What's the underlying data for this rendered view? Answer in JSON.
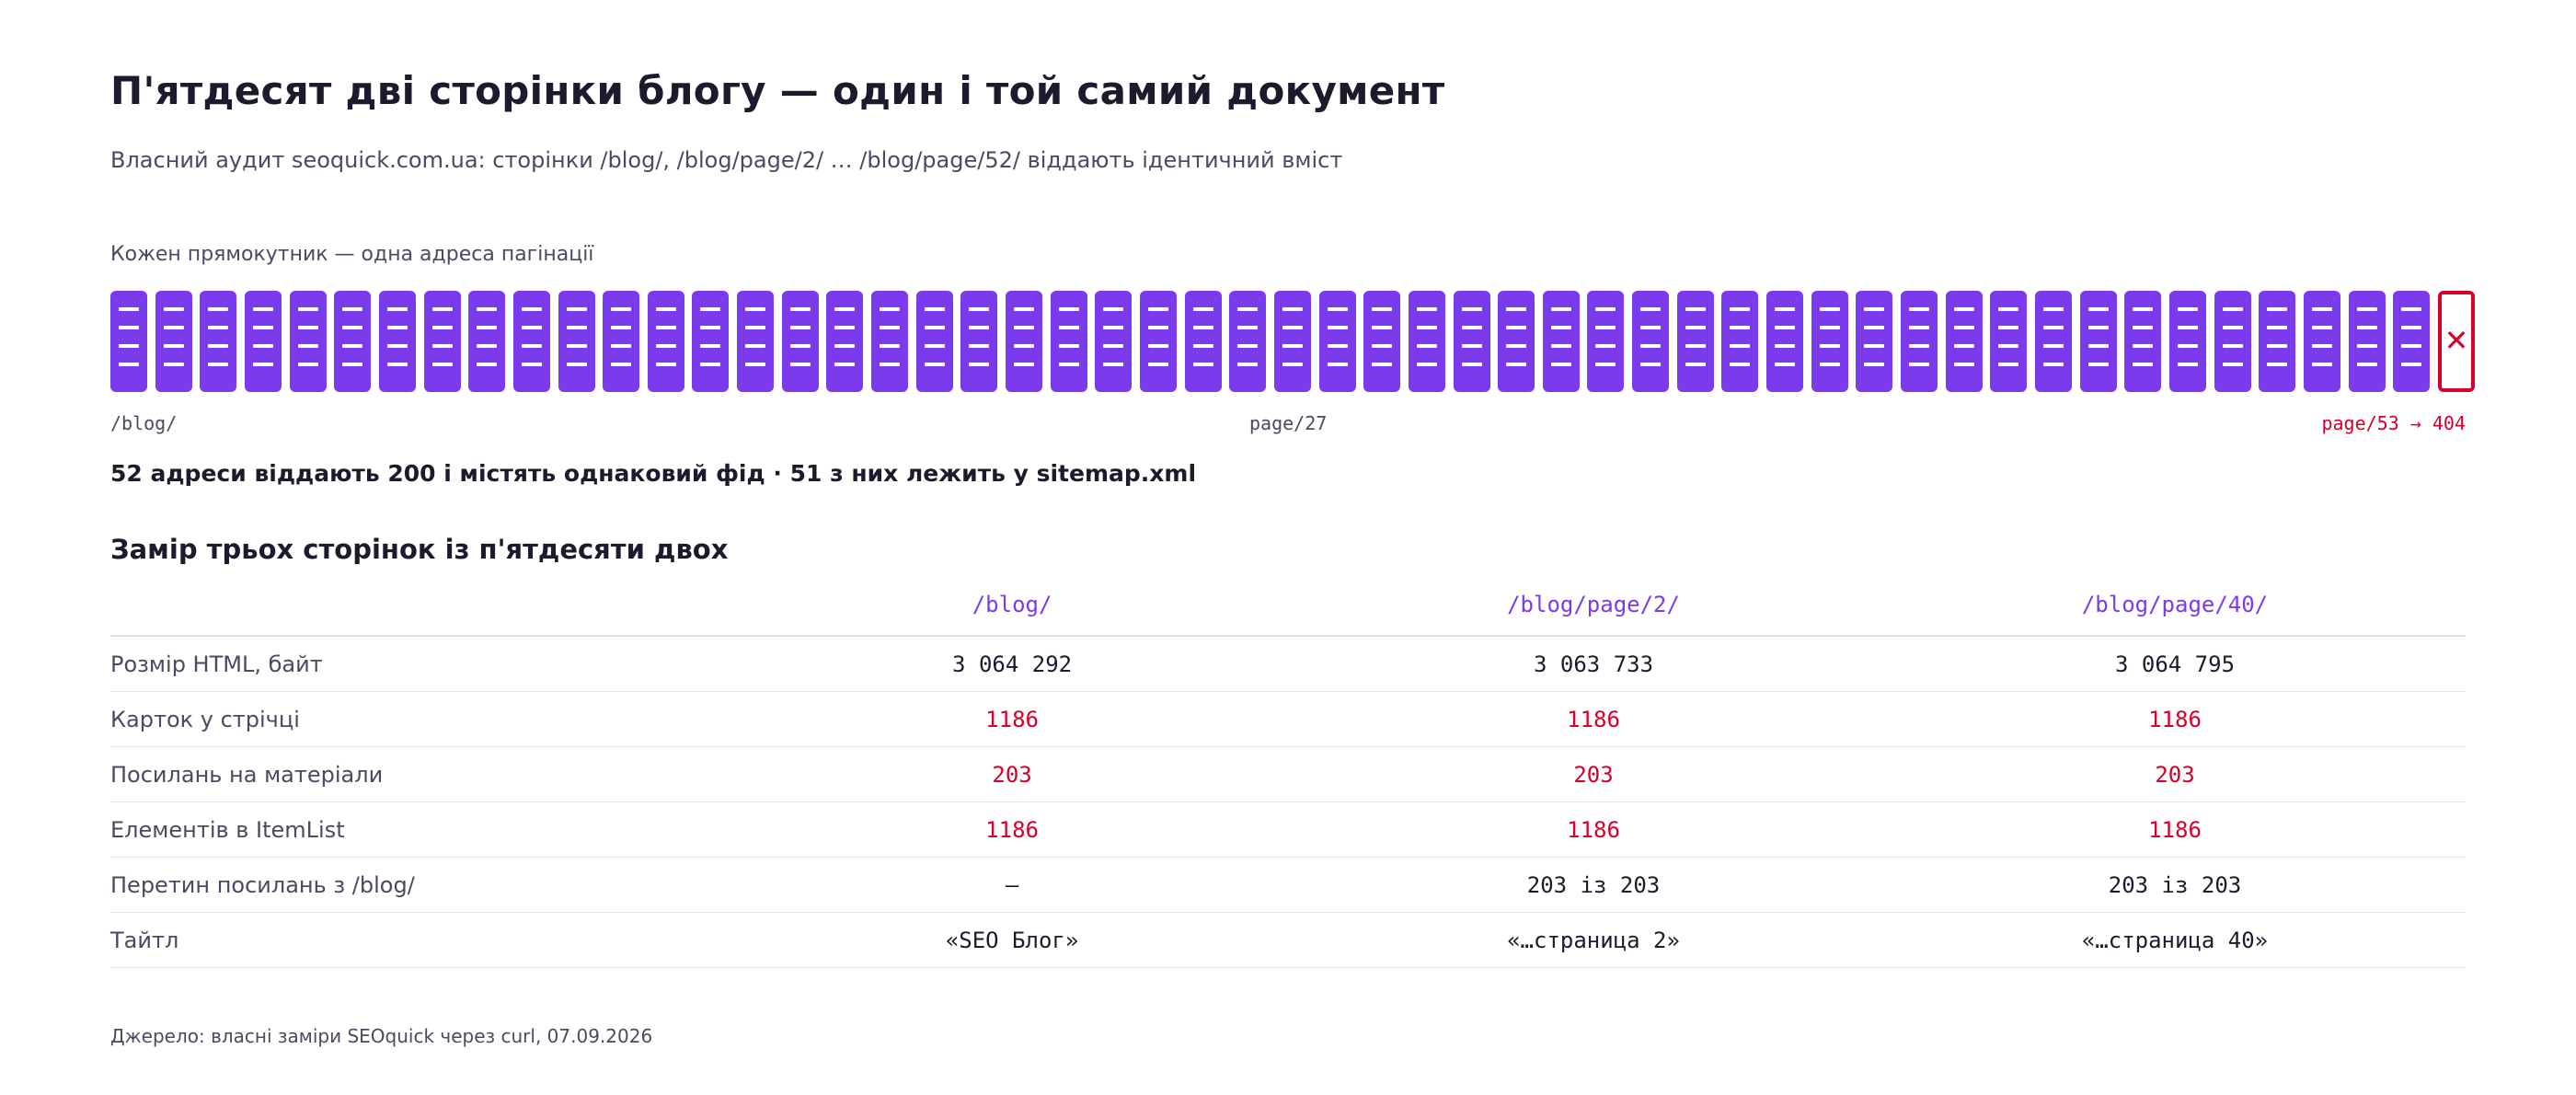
{
  "title": "П'ятдесят дві сторінки блогу — один і той самий документ",
  "subtitle": "Власний аудит seoquick.com.ua: сторінки /blog/, /blog/page/2/ … /blog/page/52/ віддають ідентичний вміст",
  "strip": {
    "caption": "Кожен прямокутник — одна адреса пагінації",
    "total_pages": 52,
    "missing_page_icon": "x-icon",
    "label_start": "/blog/",
    "label_middle": "page/27",
    "label_end": "page/53 → 404"
  },
  "summary": "52 адреси віддають 200 і містять однаковий фід · 51 з них лежить у sitemap.xml",
  "table": {
    "heading": "Замір трьох сторінок із п'ятдесяти двох",
    "columns": [
      "/blog/",
      "/blog/page/2/",
      "/blog/page/40/"
    ],
    "rows": [
      {
        "label": "Розмір HTML, байт",
        "values": [
          "3 064 292",
          "3 063 733",
          "3 064 795"
        ],
        "highlight": false
      },
      {
        "label": "Карток у стрічці",
        "values": [
          "1186",
          "1186",
          "1186"
        ],
        "highlight": true
      },
      {
        "label": "Посилань на матеріали",
        "values": [
          "203",
          "203",
          "203"
        ],
        "highlight": true
      },
      {
        "label": "Елементів в ItemList",
        "values": [
          "1186",
          "1186",
          "1186"
        ],
        "highlight": true
      },
      {
        "label": "Перетин посилань з /blog/",
        "values": [
          "—",
          "203 із 203",
          "203 із 203"
        ],
        "highlight": false
      },
      {
        "label": "Тайтл",
        "values": [
          "«SEO Блог»",
          "«…страница 2»",
          "«…страница 40»"
        ],
        "highlight": false
      }
    ]
  },
  "source": "Джерело: власні заміри SEOquick через curl, 07.09.2026",
  "colors": {
    "accent": "#7c3aed",
    "alert": "#d6002a",
    "text": "#1c1b2e",
    "muted": "#4a4a63"
  }
}
